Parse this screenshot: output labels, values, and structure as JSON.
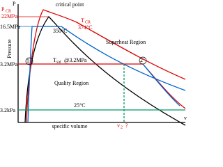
{
  "axes": {
    "y_label": "P",
    "y_title": "Pressure",
    "x_label": "v",
    "x_title": "specific volume"
  },
  "pressures": {
    "critical_symbol": "P",
    "critical_subscript": "CR",
    "critical": "22MPa",
    "high": "16.5MPa",
    "mid": "3.2MPa",
    "low": "3.2kPa"
  },
  "annotations": {
    "critical_point": "critical point",
    "t_cr_symbol": "T",
    "t_cr_subscript": "CR",
    "t_cr": "374°C",
    "t_350": "350°C",
    "superheat": "Superheat Region",
    "quality": "Quality Region",
    "t_sat": "T",
    "t_sat_subscript": "sat",
    "t_sat_tail": "@3.2MPa",
    "t_25": "25°C",
    "state1": "1",
    "state2": "2",
    "v2": "v",
    "v2_subscript": "2",
    "question": "?"
  }
}
